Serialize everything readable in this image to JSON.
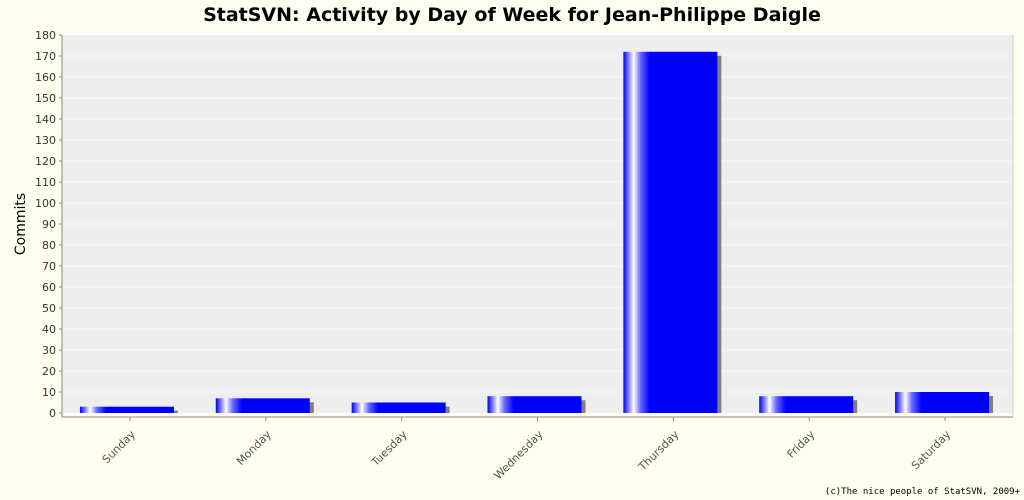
{
  "chart_data": {
    "type": "bar",
    "title": "StatSVN: Activity by Day of Week for Jean-Philippe Daigle",
    "xlabel": "",
    "ylabel": "Commits",
    "categories": [
      "Sunday",
      "Monday",
      "Tuesday",
      "Wednesday",
      "Thursday",
      "Friday",
      "Saturday"
    ],
    "values": [
      3,
      7,
      5,
      8,
      172,
      8,
      10
    ],
    "ylim": [
      0,
      180
    ],
    "yticks": [
      0,
      10,
      20,
      30,
      40,
      50,
      60,
      70,
      80,
      90,
      100,
      110,
      120,
      130,
      140,
      150,
      160,
      170,
      180
    ],
    "grid": true,
    "colors": {
      "bar": "#0000ff",
      "bar_highlight": "#ffffff",
      "shadow": "#808080",
      "plot_background": "#eeeeee",
      "page_background": "#fffff0"
    }
  },
  "footer": {
    "copyright": "(c)The nice people of StatSVN, 2009+"
  }
}
